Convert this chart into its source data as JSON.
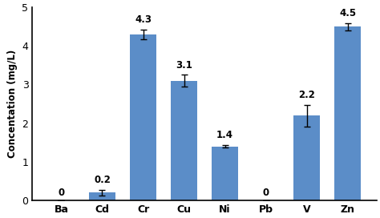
{
  "categories": [
    "Ba",
    "Cd",
    "Cr",
    "Cu",
    "Ni",
    "Pb",
    "V",
    "Zn"
  ],
  "values": [
    0,
    0.2,
    4.3,
    3.1,
    1.4,
    0,
    2.2,
    4.5
  ],
  "errors": [
    0,
    0.07,
    0.13,
    0.15,
    0.04,
    0,
    0.28,
    0.09
  ],
  "bar_color": "#5b8dc8",
  "ylabel": "Concentation (mg/L)",
  "ylim": [
    0,
    5
  ],
  "yticks": [
    0,
    1,
    2,
    3,
    4,
    5
  ],
  "value_labels": [
    "0",
    "0.2",
    "4.3",
    "3.1",
    "1.4",
    "0",
    "2.2",
    "4.5"
  ],
  "background_color": "#ffffff",
  "bar_width": 0.65
}
